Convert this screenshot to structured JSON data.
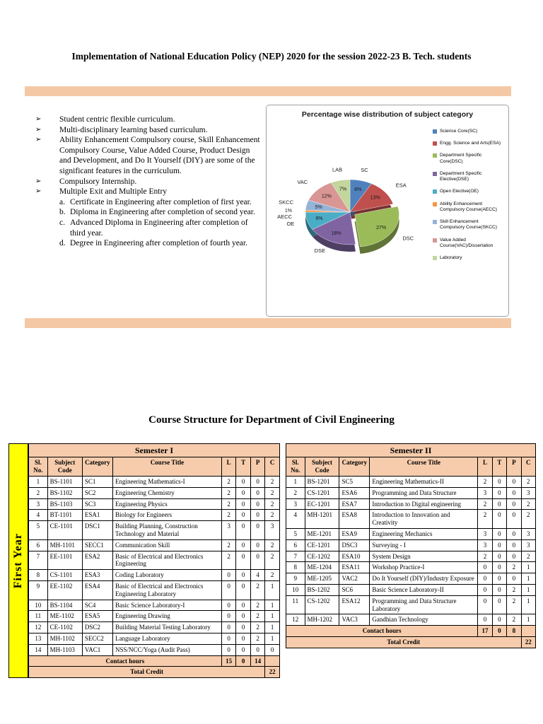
{
  "page": {
    "title": "Implementation of National Education Policy (NEP) 2020 for the session 2022-23 B. Tech. students"
  },
  "colors": {
    "accent_bar": "#f4c8a4",
    "table_header": "#f6ccac",
    "year_band": "#ffff00"
  },
  "features": {
    "bullets": [
      "Student centric flexible curriculum.",
      "Multi-disciplinary learning based curriculum.",
      "Ability Enhancement Compulsory course, Skill Enhancement Compulsory Course, Value Added Course, Product Design and Development, and Do It Yourself (DIY) are some of the significant features in the curriculum.",
      "Compulsory Internship.",
      "Multiple Exit and Multiple Entry"
    ],
    "sub_items": [
      {
        "label": "a.",
        "text": "Certificate in Engineering after completion of first year."
      },
      {
        "label": "b.",
        "text": "Diploma in Engineering after completion of second year."
      },
      {
        "label": "c.",
        "text": "Advanced Diploma in Engineering after completion of third year."
      },
      {
        "label": "d.",
        "text": "Degree in Engineering after completion of fourth year."
      }
    ]
  },
  "chart_data": {
    "type": "pie",
    "title": "Percentage wise distribution of subject category",
    "legend_position": "right",
    "slices": [
      {
        "label": "SC",
        "value": 8,
        "color": "#4f81bd",
        "legend": "Science Core(SC)"
      },
      {
        "label": "ESA",
        "value": 13,
        "color": "#c0504d",
        "legend": "Engg. Science and Arts(ESA)"
      },
      {
        "label": "DSC",
        "value": 27,
        "color": "#9bbb59",
        "legend": "Department Specific Core(DSC)",
        "explode": true
      },
      {
        "label": "DSE",
        "value": 18,
        "color": "#8064a2",
        "legend": "Department Specific Elective(DSE)"
      },
      {
        "label": "OE",
        "value": 9,
        "color": "#4bacc6",
        "legend": "Open Elective(OE)"
      },
      {
        "label": "AECC",
        "value": 1,
        "color": "#f79646",
        "legend": "Ability Enhancement Compulsory Course(AECC)"
      },
      {
        "label": "SKCC",
        "value": 5,
        "color": "#95b3d7",
        "legend": "Skill Enhancement Compulsory Course(SKCC)"
      },
      {
        "label": "VAC",
        "value": 12,
        "color": "#d99694",
        "legend": "Value Added Course(VAC)/Dissertation"
      },
      {
        "label": "LAB",
        "value": 7,
        "color": "#c3d69b",
        "legend": "Laboratory"
      }
    ]
  },
  "course_structure": {
    "heading": "Course Structure for Department of Civil Engineering",
    "year_label": "First Year",
    "columns": [
      "Sl. No.",
      "Subject Code",
      "Category",
      "Course Title",
      "L",
      "T",
      "P",
      "C"
    ],
    "semester1": {
      "title": "Semester I",
      "rows": [
        [
          "1",
          "BS-1101",
          "SC1",
          "Engineering Mathematics-I",
          "2",
          "0",
          "0",
          "2"
        ],
        [
          "2",
          "BS-1102",
          "SC2",
          "Engineering Chemistry",
          "2",
          "0",
          "0",
          "2"
        ],
        [
          "3",
          "BS-1103",
          "SC3",
          "Engineering Physics",
          "2",
          "0",
          "0",
          "2"
        ],
        [
          "4",
          "BT-1101",
          "ESA1",
          "Biology for Engineers",
          "2",
          "0",
          "0",
          "2"
        ],
        [
          "5",
          "CE-1101",
          "DSC1",
          "Building Planning, Construction Technology and Material",
          "3",
          "0",
          "0",
          "3"
        ],
        [
          "6",
          "MH-1101",
          "SECC1",
          "Communication Skill",
          "2",
          "0",
          "0",
          "2"
        ],
        [
          "7",
          "EE-1101",
          "ESA2",
          "Basic of Electrical and Electronics Engineering",
          "2",
          "0",
          "0",
          "2"
        ],
        [
          "8",
          "CS-1101",
          "ESA3",
          "Coding Laboratory",
          "0",
          "0",
          "4",
          "2"
        ],
        [
          "9",
          "EE-1102",
          "ESA4",
          "Basic of Electrical and Electronics Engineering Laboratory",
          "0",
          "0",
          "2",
          "1"
        ],
        [
          "10",
          "BS-1104",
          "SC4",
          "Basic Science Laboratory-I",
          "0",
          "0",
          "2",
          "1"
        ],
        [
          "11",
          "ME-1102",
          "ESA5",
          "Engineering Drawing",
          "0",
          "0",
          "2",
          "1"
        ],
        [
          "12",
          "CE-1102",
          "DSC2",
          "Building Material Testing Laboratory",
          "0",
          "0",
          "2",
          "1"
        ],
        [
          "13",
          "MH-1102",
          "SECC2",
          "Language Laboratory",
          "0",
          "0",
          "2",
          "1"
        ],
        [
          "14",
          "MH-1103",
          "VAC1",
          "NSS/NCC/Yoga (Audit Pass)",
          "0",
          "0",
          "0",
          "0"
        ]
      ],
      "contact_hours_label": "Contact hours",
      "contact_hours": [
        "15",
        "0",
        "14",
        ""
      ],
      "total_credit_label": "Total Credit",
      "total_credit": "22"
    },
    "semester2": {
      "title": "Semester II",
      "rows": [
        [
          "1",
          "BS-1201",
          "SC5",
          "Engineering Mathematics-II",
          "2",
          "0",
          "0",
          "2"
        ],
        [
          "2",
          "CS-1201",
          "ESA6",
          "Programming and Data Structure",
          "3",
          "0",
          "0",
          "3"
        ],
        [
          "3",
          "EC-1201",
          "ESA7",
          "Introduction to Digital engineering",
          "2",
          "0",
          "0",
          "2"
        ],
        [
          "4",
          "MH-1201",
          "ESA8",
          "Introduction to Innovation and Creativity",
          "2",
          "0",
          "0",
          "2"
        ],
        [
          "5",
          "ME-1201",
          "ESA9",
          "Engineering Mechanics",
          "3",
          "0",
          "0",
          "3"
        ],
        [
          "6",
          "CE-1201",
          "DSC3",
          "Surveying - I",
          "3",
          "0",
          "0",
          "3"
        ],
        [
          "7",
          "CE-1202",
          "ESA10",
          "System Design",
          "2",
          "0",
          "0",
          "2"
        ],
        [
          "8",
          "ME-1204",
          "ESA11",
          "Workshop Practice-I",
          "0",
          "0",
          "2",
          "1"
        ],
        [
          "9",
          "ME-1205",
          "VAC2",
          "Do It Yourself (DIY)/Industry Exposure",
          "0",
          "0",
          "0",
          "1"
        ],
        [
          "10",
          "BS-1202",
          "SC6",
          "Basic Science Laboratory-II",
          "0",
          "0",
          "2",
          "1"
        ],
        [
          "11",
          "CS-1202",
          "ESA12",
          "Programming and Data Structure Laboratory",
          "0",
          "0",
          "2",
          "1"
        ],
        [
          "12",
          "MH-1202",
          "VAC3",
          "Gandhian Technology",
          "0",
          "0",
          "2",
          "1"
        ]
      ],
      "contact_hours_label": "Contact hours",
      "contact_hours": [
        "17",
        "0",
        "8",
        ""
      ],
      "total_credit_label": "Total Credit",
      "total_credit": "22"
    }
  }
}
